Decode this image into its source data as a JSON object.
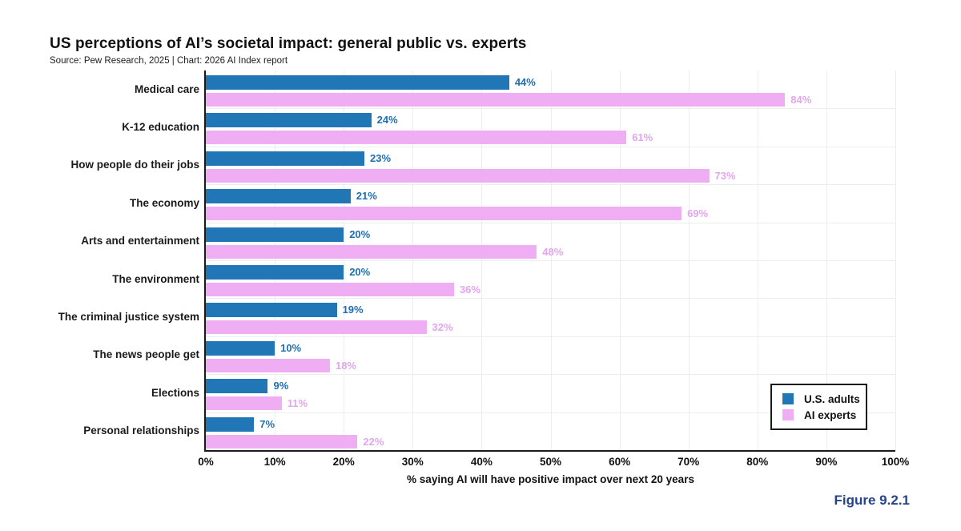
{
  "header": {
    "title": "US perceptions of AI’s societal impact: general public vs. experts",
    "subtitle": "Source: Pew Research, 2025 | Chart: 2026 AI Index report"
  },
  "figure_caption": "Figure 9.2.1",
  "colors": {
    "us_adults_bar": "#2176b5",
    "us_adults_label": "#1e6fb0",
    "ai_experts_bar": "#efaef4",
    "ai_experts_label": "#e2a6ee",
    "grid": "#ededed",
    "axis": "#1a1a1a",
    "figure_caption": "#26428b"
  },
  "chart_data": {
    "type": "bar",
    "orientation": "horizontal",
    "title": "US perceptions of AI’s societal impact: general public vs. experts",
    "categories": [
      "Medical care",
      "K-12 education",
      "How people do their jobs",
      "The economy",
      "Arts and entertainment",
      "The environment",
      "The criminal justice system",
      "The news people get",
      "Elections",
      "Personal relationships"
    ],
    "series": [
      {
        "name": "U.S. adults",
        "values": [
          44,
          24,
          23,
          21,
          20,
          20,
          19,
          10,
          9,
          7
        ]
      },
      {
        "name": "AI experts",
        "values": [
          84,
          61,
          73,
          69,
          48,
          36,
          32,
          18,
          11,
          22
        ]
      }
    ],
    "value_suffix": "%",
    "xlabel": "% saying AI will have positive impact over next 20 years",
    "x_ticks": [
      "0%",
      "10%",
      "20%",
      "30%",
      "40%",
      "50%",
      "60%",
      "70%",
      "80%",
      "90%",
      "100%"
    ],
    "xlim": [
      0,
      100
    ],
    "grid": true,
    "legend_position": "lower right"
  }
}
